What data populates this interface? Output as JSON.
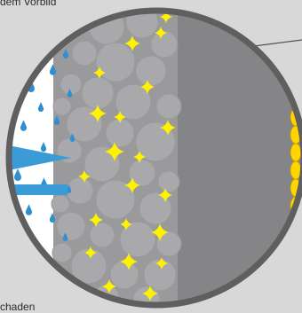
{
  "captions": {
    "top": "dem Vorbild",
    "bottom": "chaden"
  },
  "colors": {
    "background": "#d8d8d8",
    "ring": "#5f5f60",
    "left_zone": "#ffffff",
    "concrete": "#9a9a9c",
    "circles": "#a9a9ab",
    "dense_zone": "#858588",
    "crystals": "#fff200",
    "droplets": "#2f8fcf",
    "arrow": "#3a9bd6",
    "right_capsules": "#ffd500",
    "pointer_line": "#555555"
  },
  "icons": [
    "water-droplet-icon",
    "crystal-star-icon",
    "capsule-icon",
    "arrow-icon"
  ]
}
